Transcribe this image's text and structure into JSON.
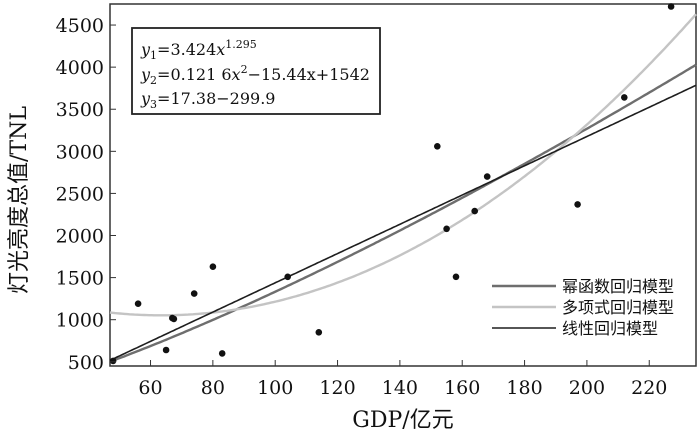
{
  "chart_data": {
    "type": "scatter",
    "xlabel": "GDP/亿元",
    "ylabel": "灯光亮度总值/TNL",
    "xlim": [
      47,
      235
    ],
    "ylim": [
      450,
      4750
    ],
    "x_ticks": [
      60,
      80,
      100,
      120,
      140,
      160,
      180,
      200,
      220
    ],
    "y_ticks": [
      500,
      1000,
      1500,
      2000,
      2500,
      3000,
      3500,
      4000,
      4500
    ],
    "grid": false,
    "legend_position": "bottom-right",
    "points": [
      {
        "x": 48,
        "y": 510
      },
      {
        "x": 56,
        "y": 1190
      },
      {
        "x": 65,
        "y": 640
      },
      {
        "x": 67,
        "y": 1020
      },
      {
        "x": 67.5,
        "y": 1010
      },
      {
        "x": 74,
        "y": 1310
      },
      {
        "x": 80,
        "y": 1630
      },
      {
        "x": 83,
        "y": 600
      },
      {
        "x": 104,
        "y": 1510
      },
      {
        "x": 114,
        "y": 850
      },
      {
        "x": 152,
        "y": 3060
      },
      {
        "x": 155,
        "y": 2080
      },
      {
        "x": 158,
        "y": 1510
      },
      {
        "x": 164,
        "y": 2290
      },
      {
        "x": 168,
        "y": 2700
      },
      {
        "x": 197,
        "y": 2370
      },
      {
        "x": 212,
        "y": 3640
      },
      {
        "x": 227,
        "y": 4720
      }
    ],
    "series": [
      {
        "name": "幂函数回归模型",
        "model": "power",
        "coef": 3.424,
        "exp": 1.295,
        "color": "#6e6e6e"
      },
      {
        "name": "多项式回归模型",
        "model": "poly2",
        "a": 0.1216,
        "b": -15.44,
        "c": 1542,
        "color": "#c4c4c4"
      },
      {
        "name": "线性回归模型",
        "model": "linear",
        "slope": 17.38,
        "intercept": -299.9,
        "color": "#1e1e1e"
      }
    ],
    "equations": [
      {
        "y": "y",
        "sub": "1",
        "rhs": "=3.424",
        "x": "x",
        "sup": "1.295",
        "tail": ""
      },
      {
        "y": "y",
        "sub": "2",
        "rhs": "=0.121 6",
        "x": "x",
        "sup": "2",
        "tail": "−15.44x+1542"
      },
      {
        "y": "y",
        "sub": "3",
        "rhs": "=17.38−299.9",
        "x": "",
        "sup": "",
        "tail": ""
      }
    ]
  }
}
